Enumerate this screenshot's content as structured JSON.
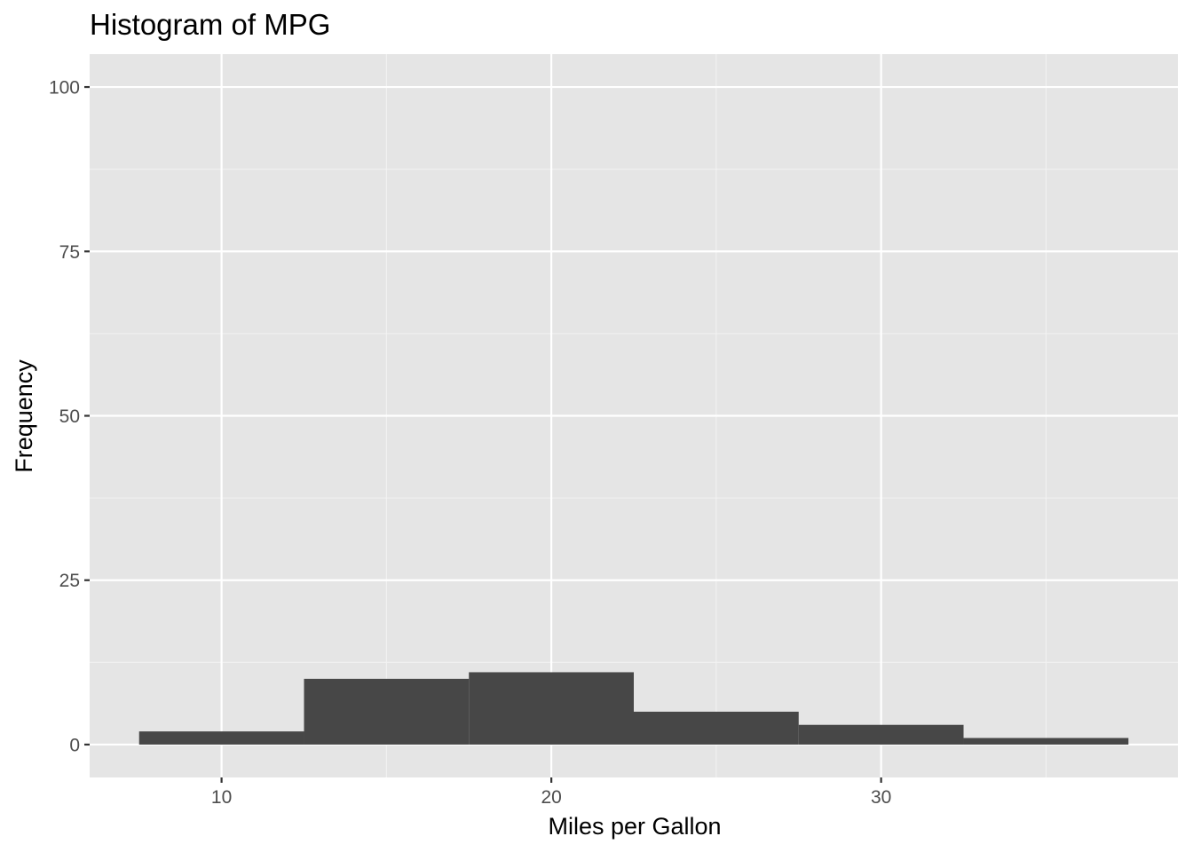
{
  "chart_data": {
    "type": "bar",
    "title": "Histogram of MPG",
    "xlabel": "Miles per Gallon",
    "ylabel": "Frequency",
    "bins": [
      {
        "x_start": 7.5,
        "x_end": 12.5,
        "count": 2
      },
      {
        "x_start": 12.5,
        "x_end": 17.5,
        "count": 10
      },
      {
        "x_start": 17.5,
        "x_end": 22.5,
        "count": 11
      },
      {
        "x_start": 22.5,
        "x_end": 27.5,
        "count": 5
      },
      {
        "x_start": 27.5,
        "x_end": 32.5,
        "count": 3
      },
      {
        "x_start": 32.5,
        "x_end": 37.5,
        "count": 1
      }
    ],
    "xlim": [
      6,
      39
    ],
    "ylim": [
      -5,
      105
    ],
    "x_ticks": [
      10,
      20,
      30
    ],
    "x_minor_ticks": [
      15,
      25,
      35
    ],
    "y_ticks": [
      0,
      25,
      50,
      75,
      100
    ],
    "y_minor_ticks": [
      12.5,
      37.5,
      62.5,
      87.5
    ],
    "grid": true,
    "colors": {
      "panel_background": "#e5e5e5",
      "grid_major": "#ffffff",
      "grid_minor": "#f2f2f2",
      "bar_fill": "#474747",
      "tick_mark": "#333333",
      "tick_label": "#4d4d4d"
    }
  }
}
